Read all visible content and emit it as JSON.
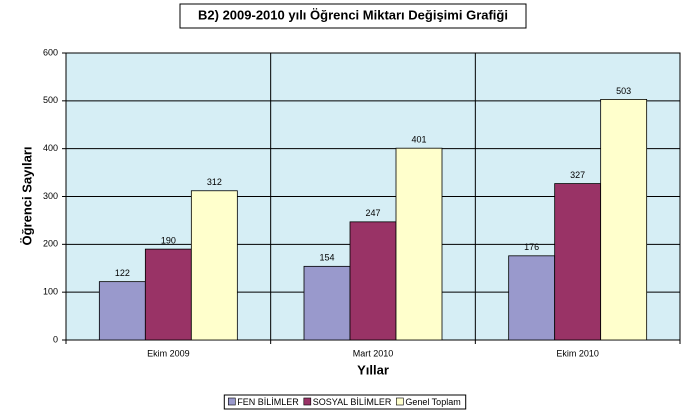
{
  "chart_data": {
    "type": "bar",
    "title": "B2) 2009-2010 yılı Öğrenci Miktarı Değişimi Grafiği",
    "x_label": "Yıllar",
    "y_label": "Öğrenci Sayıları",
    "categories": [
      "Ekim 2009",
      "Mart 2010",
      "Ekim 2010"
    ],
    "series": [
      {
        "name": "FEN  BİLİMLER",
        "color": "#9999cc",
        "values": [
          122,
          154,
          176
        ]
      },
      {
        "name": "SOSYAL BİLİMLER",
        "color": "#993366",
        "values": [
          190,
          247,
          327
        ]
      },
      {
        "name": "Genel Toplam",
        "color": "#ffffcc",
        "values": [
          312,
          401,
          503
        ]
      }
    ],
    "ylim": [
      0,
      600
    ],
    "yticks": [
      0,
      100,
      200,
      300,
      400,
      500,
      600
    ],
    "grid": true,
    "legend": "bottom",
    "plot_background": "#d6eef5"
  }
}
